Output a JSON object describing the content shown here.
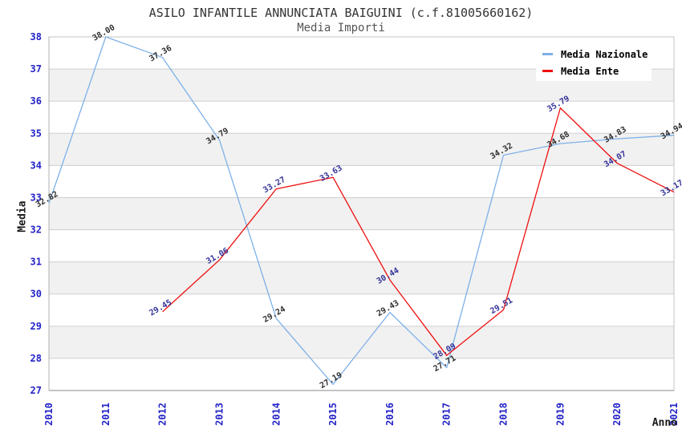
{
  "chart_data": {
    "type": "line",
    "title": "ASILO INFANTILE ANNUNCIATA BAIGUINI (c.f.81005660162)",
    "subtitle": "Media Importi",
    "xlabel": "Anno",
    "ylabel": "Media",
    "categories": [
      "2010",
      "2011",
      "2012",
      "2013",
      "2014",
      "2015",
      "2016",
      "2017",
      "2018",
      "2019",
      "2020",
      "2021"
    ],
    "ylim": [
      27,
      38
    ],
    "yticks": [
      27,
      28,
      29,
      30,
      31,
      32,
      33,
      34,
      35,
      36,
      37,
      38
    ],
    "grid": "horizontal-only",
    "legend_position": "top-right-inside",
    "colors": {
      "tick_label": "#2323c8",
      "grid_line": "#cfcfcf",
      "band_gray": "#f1f1f1",
      "band_white": "#ffffff",
      "plot_border": "#c4c4c4",
      "axis_line": "#8a8a8a"
    },
    "series": [
      {
        "name": "Media Nazionale",
        "color": "#7db0e8",
        "label_color": "#2e2e2e",
        "values": [
          32.82,
          38.0,
          37.36,
          34.79,
          29.24,
          27.19,
          29.43,
          27.71,
          34.32,
          34.68,
          34.83,
          34.94
        ]
      },
      {
        "name": "Media Ente",
        "color": "#ee0f0f",
        "label_color": "#333399",
        "values": [
          null,
          null,
          29.45,
          31.06,
          33.27,
          33.63,
          30.44,
          28.09,
          29.51,
          35.79,
          34.07,
          33.17
        ]
      }
    ]
  }
}
